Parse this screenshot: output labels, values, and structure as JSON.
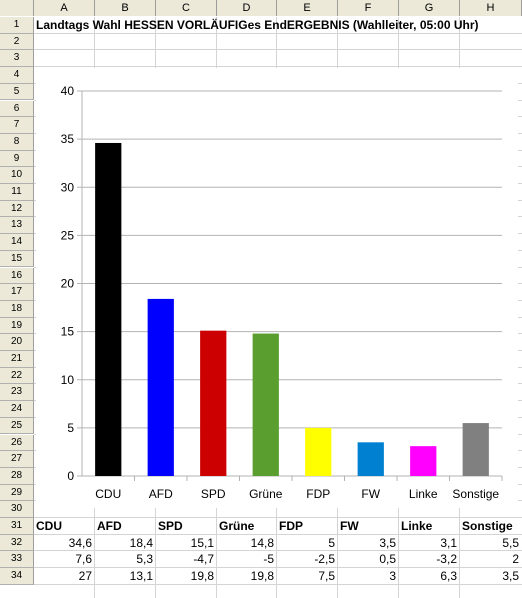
{
  "spreadsheet": {
    "columns": [
      "A",
      "B",
      "C",
      "D",
      "E",
      "F",
      "G",
      "H"
    ],
    "rows": [
      "1",
      "2",
      "3",
      "4",
      "5",
      "6",
      "7",
      "8",
      "9",
      "10",
      "11",
      "12",
      "13",
      "14",
      "15",
      "16",
      "17",
      "18",
      "19",
      "20",
      "21",
      "22",
      "23",
      "24",
      "25",
      "26",
      "27",
      "28",
      "29",
      "30",
      "31",
      "32",
      "33",
      "34"
    ],
    "title": "Landtags Wahl HESSEN VORLÄUFIGes EndERGEBNIS (Wahlleiter, 05:00 Uhr)"
  },
  "table": {
    "headers": [
      "CDU",
      "AFD",
      "SPD",
      "Grüne",
      "FDP",
      "FW",
      "Linke",
      "Sonstige"
    ],
    "rows": [
      [
        "34,6",
        "18,4",
        "15,1",
        "14,8",
        "5",
        "3,5",
        "3,1",
        "5,5"
      ],
      [
        "7,6",
        "5,3",
        "-4,7",
        "-5",
        "-2,5",
        "0,5",
        "-3,2",
        "2"
      ],
      [
        "27",
        "13,1",
        "19,8",
        "19,8",
        "7,5",
        "3",
        "6,3",
        "3,5"
      ]
    ]
  },
  "chart_data": {
    "type": "bar",
    "categories": [
      "CDU",
      "AFD",
      "SPD",
      "Grüne",
      "FDP",
      "FW",
      "Linke",
      "Sonstige"
    ],
    "values": [
      34.6,
      18.4,
      15.1,
      14.8,
      5,
      3.5,
      3.1,
      5.5
    ],
    "colors": [
      "#000000",
      "#0000ff",
      "#cc0000",
      "#5a9e2f",
      "#ffff00",
      "#0080d0",
      "#ff00ff",
      "#808080"
    ],
    "ylim": [
      0,
      40
    ],
    "yticks": [
      "0",
      "5",
      "10",
      "15",
      "20",
      "25",
      "30",
      "35",
      "40"
    ],
    "grid": true,
    "legend": "none"
  }
}
